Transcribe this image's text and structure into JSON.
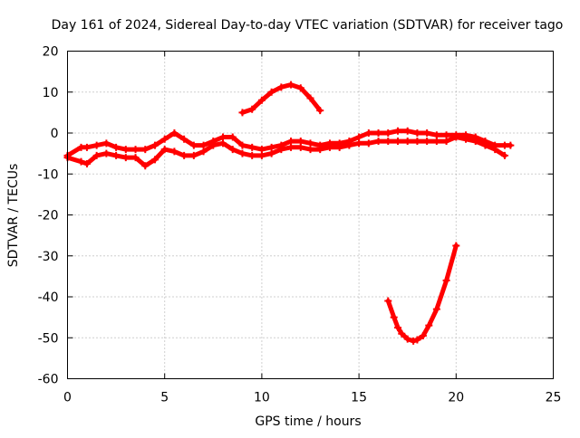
{
  "chart_data": {
    "type": "line",
    "title": "Day 161 of 2024, Sidereal Day-to-day VTEC variation (SDTVAR) for receiver tago",
    "xlabel": "GPS time / hours",
    "ylabel": "SDTVAR / TECUs",
    "xlim": [
      0,
      25
    ],
    "ylim": [
      -60,
      20
    ],
    "xticks": [
      0,
      5,
      10,
      15,
      20,
      25
    ],
    "yticks": [
      -60,
      -50,
      -40,
      -30,
      -20,
      -10,
      0,
      10,
      20
    ],
    "grid": true,
    "legend": "none",
    "series_color": "#ff0000",
    "series": [
      {
        "name": "main band upper",
        "x": [
          0,
          0.7,
          1,
          1.5,
          2,
          2.5,
          3,
          3.5,
          4,
          4.5,
          5,
          5.5,
          6,
          6.5,
          7,
          7.5,
          8,
          8.5,
          9,
          9.5,
          10,
          10.5,
          11,
          11.5,
          12,
          12.5,
          13,
          13.5,
          14,
          14.5,
          15,
          15.5,
          16,
          16.5,
          17,
          17.5,
          18,
          18.5,
          19,
          19.5,
          20,
          20.5,
          21,
          21.5,
          22,
          22.5,
          22.8
        ],
        "values": [
          -5.5,
          -3.5,
          -3.5,
          -3,
          -2.5,
          -3.5,
          -4,
          -4,
          -4,
          -3,
          -1.5,
          0,
          -1.5,
          -3,
          -3,
          -2,
          -1,
          -1,
          -3,
          -3.5,
          -4,
          -3.5,
          -3,
          -2,
          -2,
          -2.5,
          -3,
          -2.5,
          -2.5,
          -2,
          -1,
          0,
          0,
          0,
          0.5,
          0.5,
          0,
          0,
          -0.5,
          -0.5,
          -0.5,
          -0.5,
          -1,
          -2,
          -3,
          -3,
          -3
        ]
      },
      {
        "name": "main band lower",
        "x": [
          0,
          0.7,
          1,
          1.5,
          2,
          2.5,
          3,
          3.5,
          4,
          4.5,
          5,
          5.5,
          6,
          6.5,
          7,
          7.5,
          8,
          8.5,
          9,
          9.5,
          10,
          10.5,
          11,
          11.5,
          12,
          12.5,
          13,
          13.5,
          14,
          14.5,
          15,
          15.5,
          16,
          16.5,
          17,
          17.5,
          18,
          18.5,
          19,
          19.5,
          20,
          20.5,
          21,
          21.5,
          22,
          22.5
        ],
        "values": [
          -6,
          -7,
          -7.5,
          -5.5,
          -5,
          -5.5,
          -6,
          -6,
          -8,
          -6.5,
          -4,
          -4.5,
          -5.5,
          -5.5,
          -4.5,
          -3,
          -2.5,
          -4,
          -5,
          -5.5,
          -5.5,
          -5,
          -4,
          -3.5,
          -3.5,
          -4,
          -4,
          -3.5,
          -3.5,
          -3,
          -2.5,
          -2.5,
          -2,
          -2,
          -2,
          -2,
          -2,
          -2,
          -2,
          -2,
          -1,
          -1.5,
          -2,
          -3,
          -4,
          -5.5
        ]
      },
      {
        "name": "upper arc",
        "x": [
          9,
          9.5,
          10,
          10.5,
          11,
          11.5,
          12,
          12.5,
          13
        ],
        "values": [
          5,
          5.8,
          8,
          10,
          11.2,
          11.8,
          11,
          8.5,
          5.5
        ]
      },
      {
        "name": "lower arc",
        "x": [
          16.5,
          16.8,
          17,
          17.2,
          17.5,
          17.8,
          18,
          18.3,
          18.6,
          19,
          19.5,
          20
        ],
        "values": [
          -41,
          -45,
          -47.5,
          -49,
          -50.3,
          -50.8,
          -50.5,
          -49.5,
          -47,
          -43,
          -36,
          -27.5
        ]
      }
    ]
  }
}
